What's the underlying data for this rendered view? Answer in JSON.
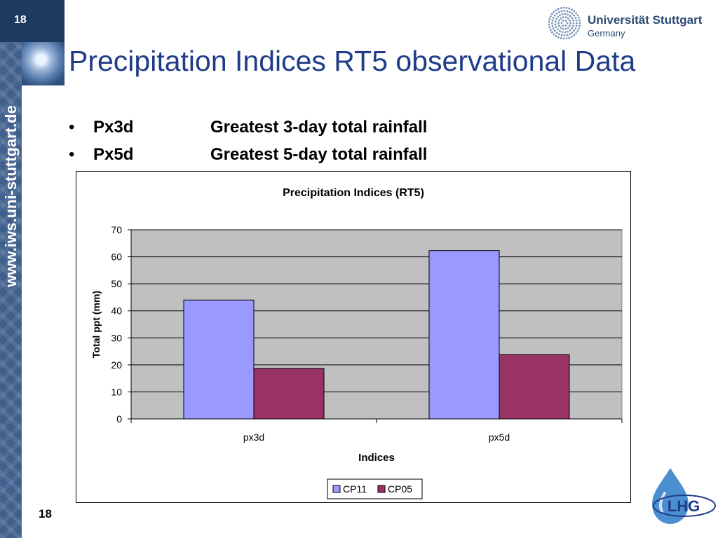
{
  "slide": {
    "number": "18",
    "title": "Precipitation Indices RT5 observational Data",
    "side_url": "www.iws.uni-stuttgart.de",
    "university_name": "Universität Stuttgart",
    "university_country": "Germany",
    "lhg_logo_text": "LHG",
    "bullets": [
      {
        "code": "Px3d",
        "description": "Greatest 3-day total rainfall"
      },
      {
        "code": "Px5d",
        "description": "Greatest 5-day total rainfall"
      }
    ],
    "colors": {
      "title": "#1f3c88",
      "strip": "#3f5f8c",
      "top_box": "#1f3a5f"
    }
  },
  "chart_data": {
    "type": "bar",
    "title": "Precipitation Indices (RT5)",
    "xlabel": "Indices",
    "ylabel": "Total ppt (mm)",
    "categories": [
      "px3d",
      "px5d"
    ],
    "series": [
      {
        "name": "CP11",
        "values": [
          44,
          62.3
        ],
        "color": "#9999ff"
      },
      {
        "name": "CP05",
        "values": [
          18.7,
          23.8
        ],
        "color": "#993366"
      }
    ],
    "ylim": [
      0,
      70
    ],
    "yticks": [
      0,
      10,
      20,
      30,
      40,
      50,
      60,
      70
    ],
    "grid": true,
    "plot_background": "#c0c0c0",
    "legend": "bottom"
  }
}
